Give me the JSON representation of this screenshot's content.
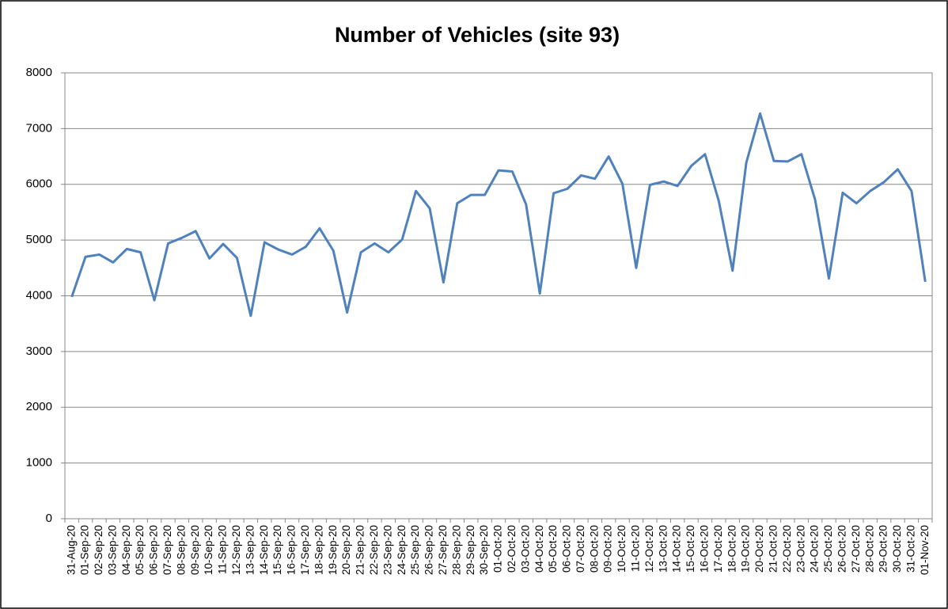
{
  "chart_data": {
    "type": "line",
    "title": "Number of Vehicles (site 93)",
    "categories": [
      "31-Aug-20",
      "01-Sep-20",
      "02-Sep-20",
      "03-Sep-20",
      "04-Sep-20",
      "05-Sep-20",
      "06-Sep-20",
      "07-Sep-20",
      "08-Sep-20",
      "09-Sep-20",
      "10-Sep-20",
      "11-Sep-20",
      "12-Sep-20",
      "13-Sep-20",
      "14-Sep-20",
      "15-Sep-20",
      "16-Sep-20",
      "17-Sep-20",
      "18-Sep-20",
      "19-Sep-20",
      "20-Sep-20",
      "21-Sep-20",
      "22-Sep-20",
      "23-Sep-20",
      "24-Sep-20",
      "25-Sep-20",
      "26-Sep-20",
      "27-Sep-20",
      "28-Sep-20",
      "29-Sep-20",
      "30-Sep-20",
      "01-Oct-20",
      "02-Oct-20",
      "03-Oct-20",
      "04-Oct-20",
      "05-Oct-20",
      "06-Oct-20",
      "07-Oct-20",
      "08-Oct-20",
      "09-Oct-20",
      "10-Oct-20",
      "11-Oct-20",
      "12-Oct-20",
      "13-Oct-20",
      "14-Oct-20",
      "15-Oct-20",
      "16-Oct-20",
      "17-Oct-20",
      "18-Oct-20",
      "19-Oct-20",
      "20-Oct-20",
      "21-Oct-20",
      "22-Oct-20",
      "23-Oct-20",
      "24-Oct-20",
      "25-Oct-20",
      "26-Oct-20",
      "27-Oct-20",
      "28-Oct-20",
      "29-Oct-20",
      "30-Oct-20",
      "31-Oct-20",
      "01-Nov-20"
    ],
    "values": [
      3980,
      4700,
      4740,
      4600,
      4840,
      4780,
      3920,
      4940,
      5040,
      5160,
      4670,
      4930,
      4680,
      3640,
      4960,
      4830,
      4740,
      4880,
      5210,
      4810,
      3700,
      4780,
      4940,
      4780,
      5010,
      5880,
      5570,
      4240,
      5660,
      5810,
      5810,
      6250,
      6230,
      5640,
      4040,
      5840,
      5920,
      6160,
      6100,
      6500,
      6010,
      4500,
      5990,
      6050,
      5970,
      6330,
      6540,
      5700,
      4450,
      6390,
      7270,
      6420,
      6410,
      6540,
      5720,
      4310,
      5850,
      5660,
      5880,
      6040,
      6270,
      5880,
      4250
    ],
    "color": "#4f81bd",
    "ylim": [
      0,
      8000
    ],
    "yticks": [
      0,
      1000,
      2000,
      3000,
      4000,
      5000,
      6000,
      7000,
      8000
    ],
    "grid": true
  }
}
